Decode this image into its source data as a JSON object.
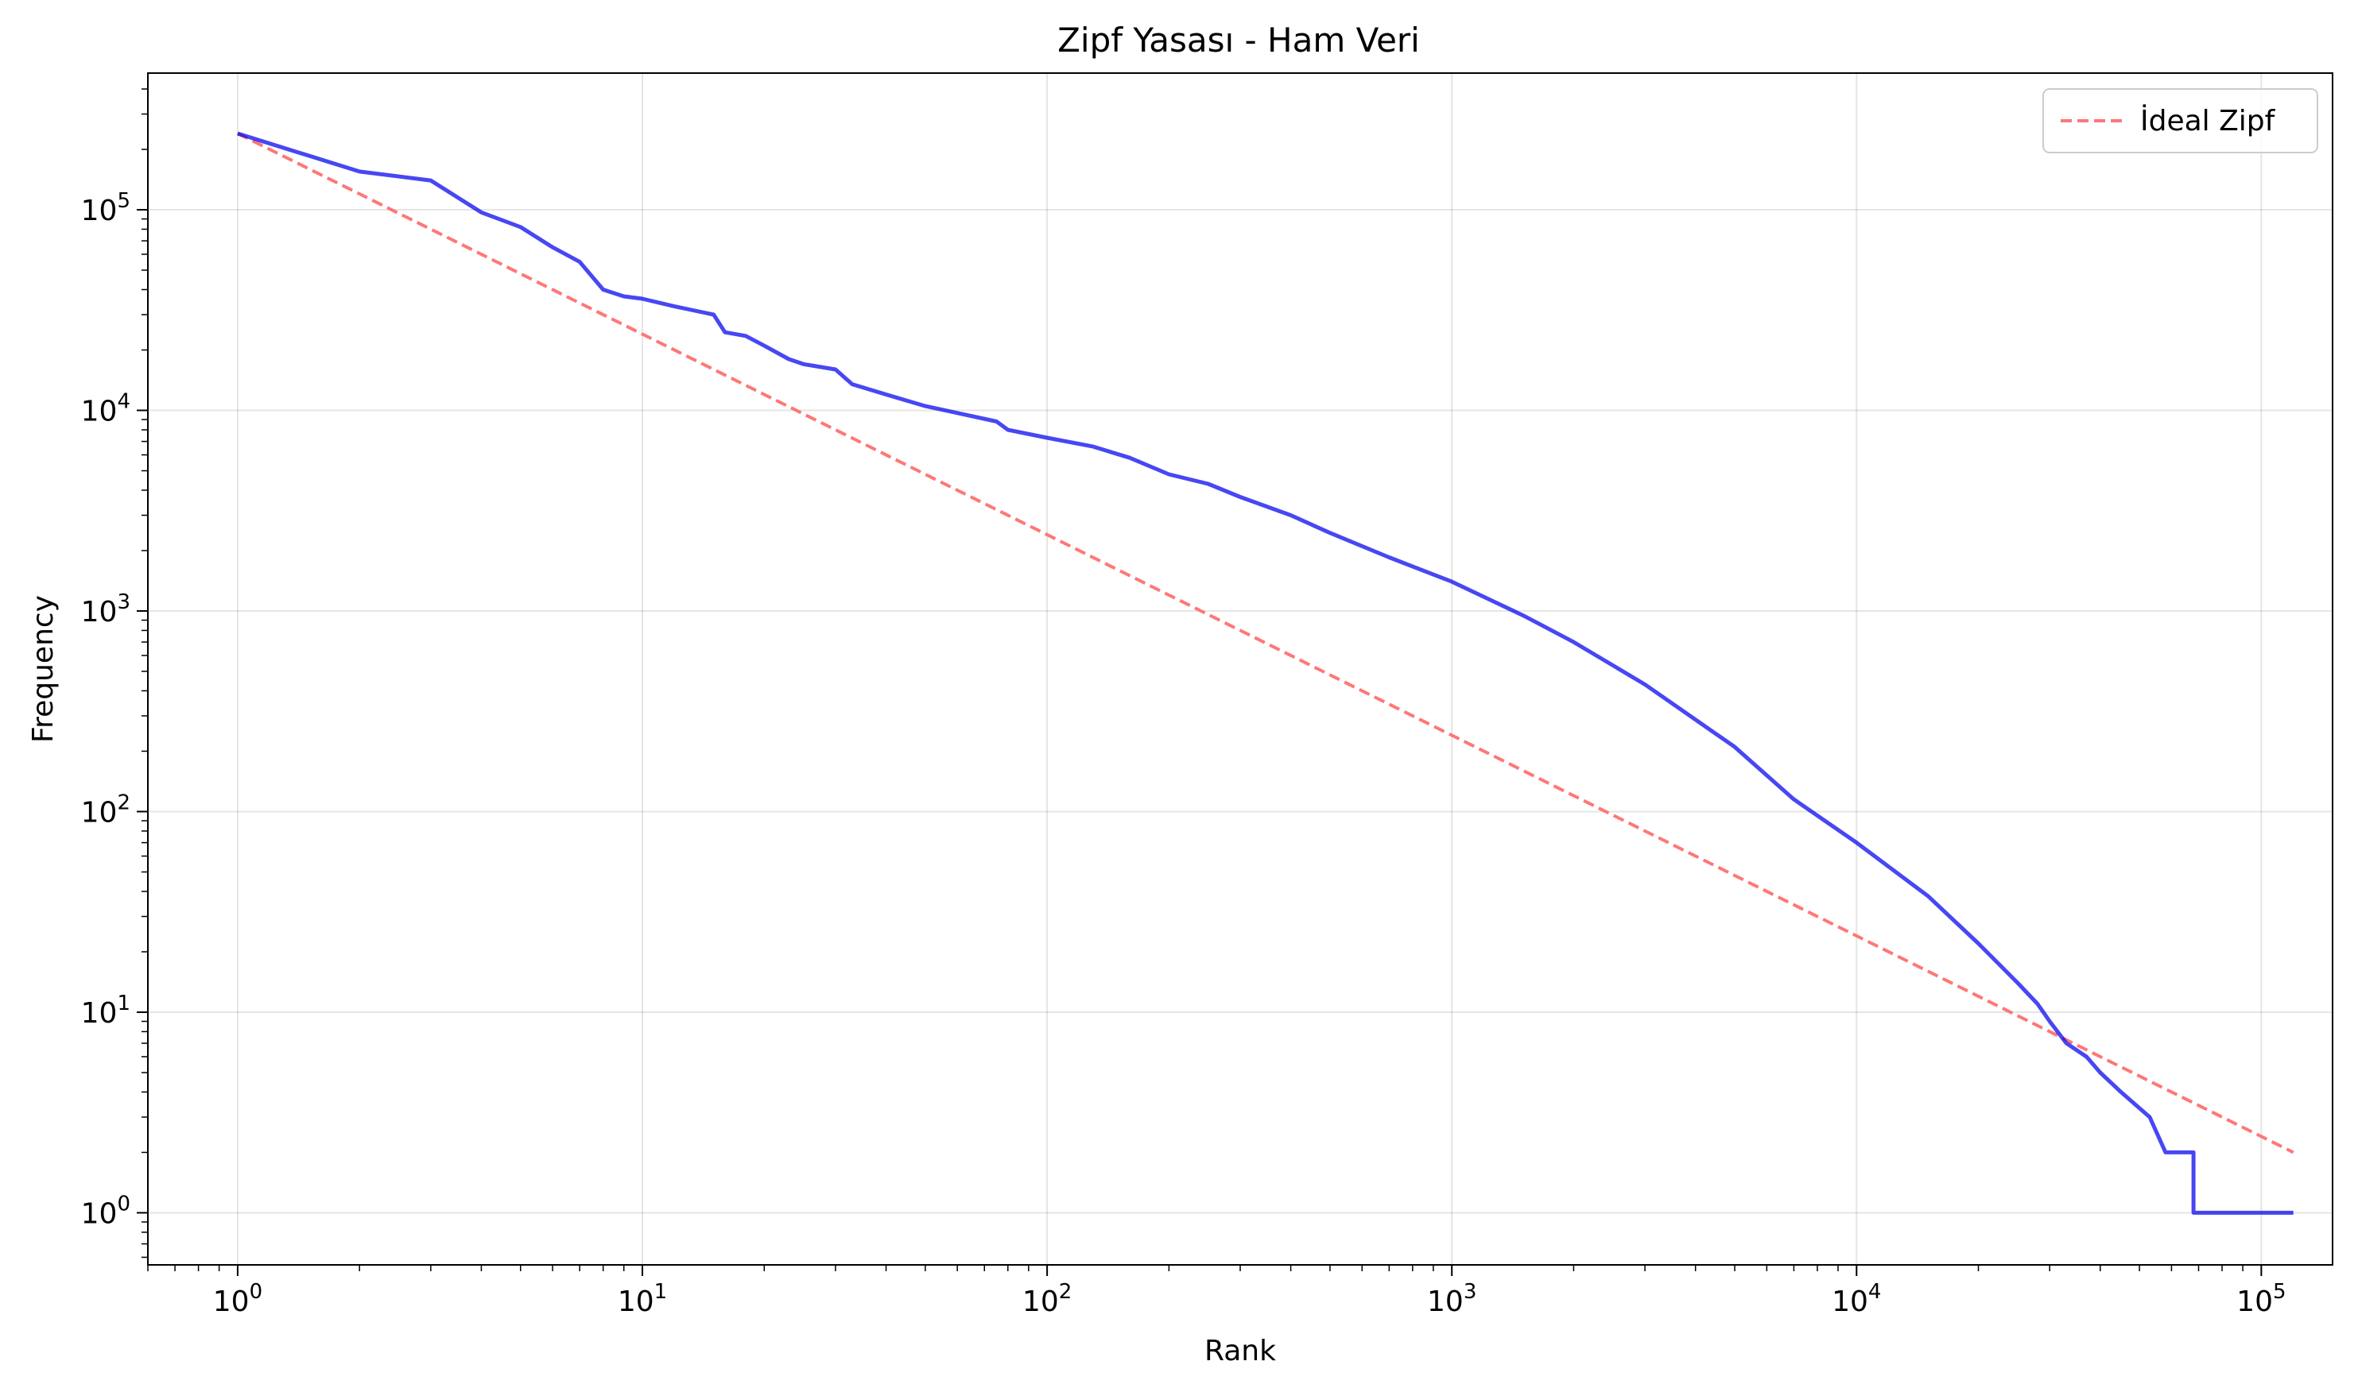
{
  "chart_data": {
    "type": "line",
    "title": "Zipf Yasası - Ham Veri",
    "xlabel": "Rank",
    "ylabel": "Frequency",
    "xscale": "log",
    "yscale": "log",
    "xlim": [
      0.6,
      150000
    ],
    "ylim": [
      0.55,
      480000
    ],
    "grid": true,
    "legend_position": "top-right",
    "x_ticks": [
      {
        "base": "10",
        "exp": "0",
        "value": 1
      },
      {
        "base": "10",
        "exp": "1",
        "value": 10
      },
      {
        "base": "10",
        "exp": "2",
        "value": 100
      },
      {
        "base": "10",
        "exp": "3",
        "value": 1000
      },
      {
        "base": "10",
        "exp": "4",
        "value": 10000
      },
      {
        "base": "10",
        "exp": "5",
        "value": 100000
      }
    ],
    "y_ticks": [
      {
        "base": "10",
        "exp": "0",
        "value": 1
      },
      {
        "base": "10",
        "exp": "1",
        "value": 10
      },
      {
        "base": "10",
        "exp": "2",
        "value": 100
      },
      {
        "base": "10",
        "exp": "3",
        "value": 1000
      },
      {
        "base": "10",
        "exp": "4",
        "value": 10000
      },
      {
        "base": "10",
        "exp": "5",
        "value": 100000
      }
    ],
    "series": [
      {
        "color": "#0000ee",
        "style": "solid",
        "points": [
          [
            1,
            240000
          ],
          [
            2,
            155000
          ],
          [
            3,
            140000
          ],
          [
            4,
            97000
          ],
          [
            5,
            82000
          ],
          [
            6,
            65000
          ],
          [
            7,
            55000
          ],
          [
            8,
            40000
          ],
          [
            9,
            37000
          ],
          [
            10,
            36000
          ],
          [
            12,
            33000
          ],
          [
            15,
            30000
          ],
          [
            16,
            24500
          ],
          [
            18,
            23500
          ],
          [
            20,
            21000
          ],
          [
            23,
            18000
          ],
          [
            25,
            17000
          ],
          [
            30,
            16000
          ],
          [
            33,
            13500
          ],
          [
            40,
            12000
          ],
          [
            50,
            10500
          ],
          [
            60,
            9700
          ],
          [
            75,
            8800
          ],
          [
            80,
            8000
          ],
          [
            100,
            7300
          ],
          [
            130,
            6600
          ],
          [
            160,
            5800
          ],
          [
            200,
            4800
          ],
          [
            250,
            4300
          ],
          [
            300,
            3700
          ],
          [
            400,
            3000
          ],
          [
            500,
            2450
          ],
          [
            700,
            1850
          ],
          [
            1000,
            1400
          ],
          [
            1500,
            950
          ],
          [
            2000,
            700
          ],
          [
            3000,
            430
          ],
          [
            5000,
            210
          ],
          [
            7000,
            115
          ],
          [
            10000,
            70
          ],
          [
            15000,
            38
          ],
          [
            20000,
            22
          ],
          [
            25000,
            14
          ],
          [
            28000,
            11
          ],
          [
            30000,
            9
          ],
          [
            33000,
            7
          ],
          [
            37000,
            6
          ],
          [
            40000,
            5
          ],
          [
            45000,
            4
          ],
          [
            53000,
            3
          ],
          [
            58000,
            2
          ],
          [
            68000,
            2
          ],
          [
            68000,
            1
          ],
          [
            120000,
            1
          ]
        ]
      },
      {
        "name": "İdeal Zipf",
        "color": "#ff7777",
        "style": "dashed",
        "points": [
          [
            1,
            240000
          ],
          [
            120000,
            2
          ]
        ]
      }
    ]
  }
}
